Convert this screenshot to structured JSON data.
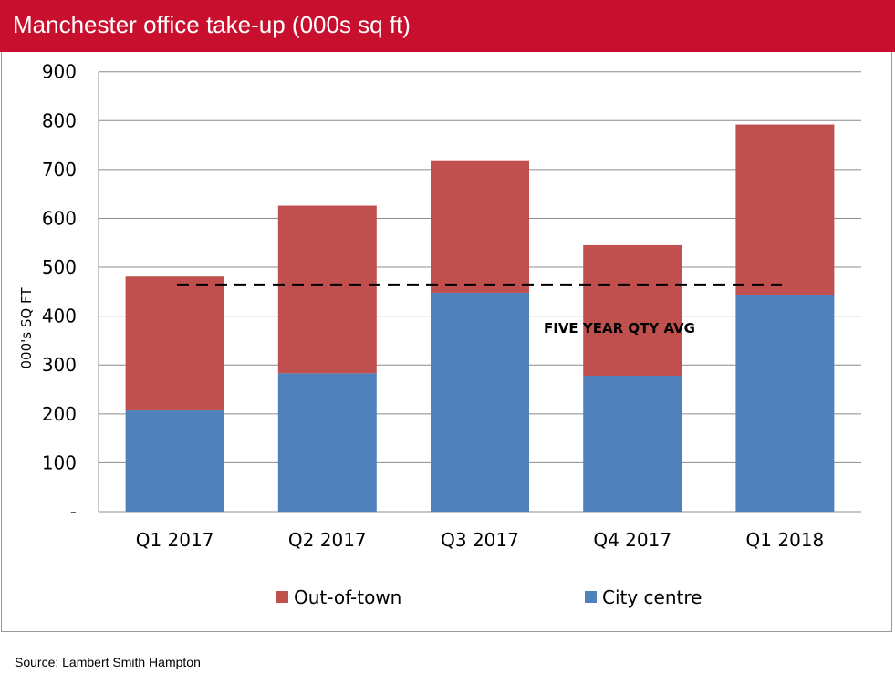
{
  "header": {
    "title": "Manchester office take-up (000s sq ft)"
  },
  "source": "Source: Lambert Smith Hampton",
  "chart_data": {
    "type": "bar",
    "stacked": true,
    "title": "Manchester office take-up (000s sq ft)",
    "xlabel": "",
    "ylabel": "000's SQ FT",
    "ylim": [
      0,
      900
    ],
    "yticks": [
      0,
      100,
      200,
      300,
      400,
      500,
      600,
      700,
      800,
      900
    ],
    "ytick_labels": [
      "-",
      "100",
      "200",
      "300",
      "400",
      "500",
      "600",
      "700",
      "800",
      "900"
    ],
    "grid": true,
    "legend_position": "bottom",
    "categories": [
      "Q1 2017",
      "Q2 2017",
      "Q3 2017",
      "Q4 2017",
      "Q1 2018"
    ],
    "series": [
      {
        "name": "City centre",
        "color": "#4f81bd",
        "values": [
          207,
          283,
          448,
          278,
          443
        ]
      },
      {
        "name": "Out-of-town",
        "color": "#c0504d",
        "values": [
          274,
          343,
          271,
          267,
          349
        ]
      }
    ],
    "legend_order": [
      "Out-of-town",
      "City centre"
    ],
    "reference_line": {
      "label": "FIVE YEAR QTY AVG",
      "value": 464,
      "style": "dashed",
      "color": "#000000"
    }
  }
}
